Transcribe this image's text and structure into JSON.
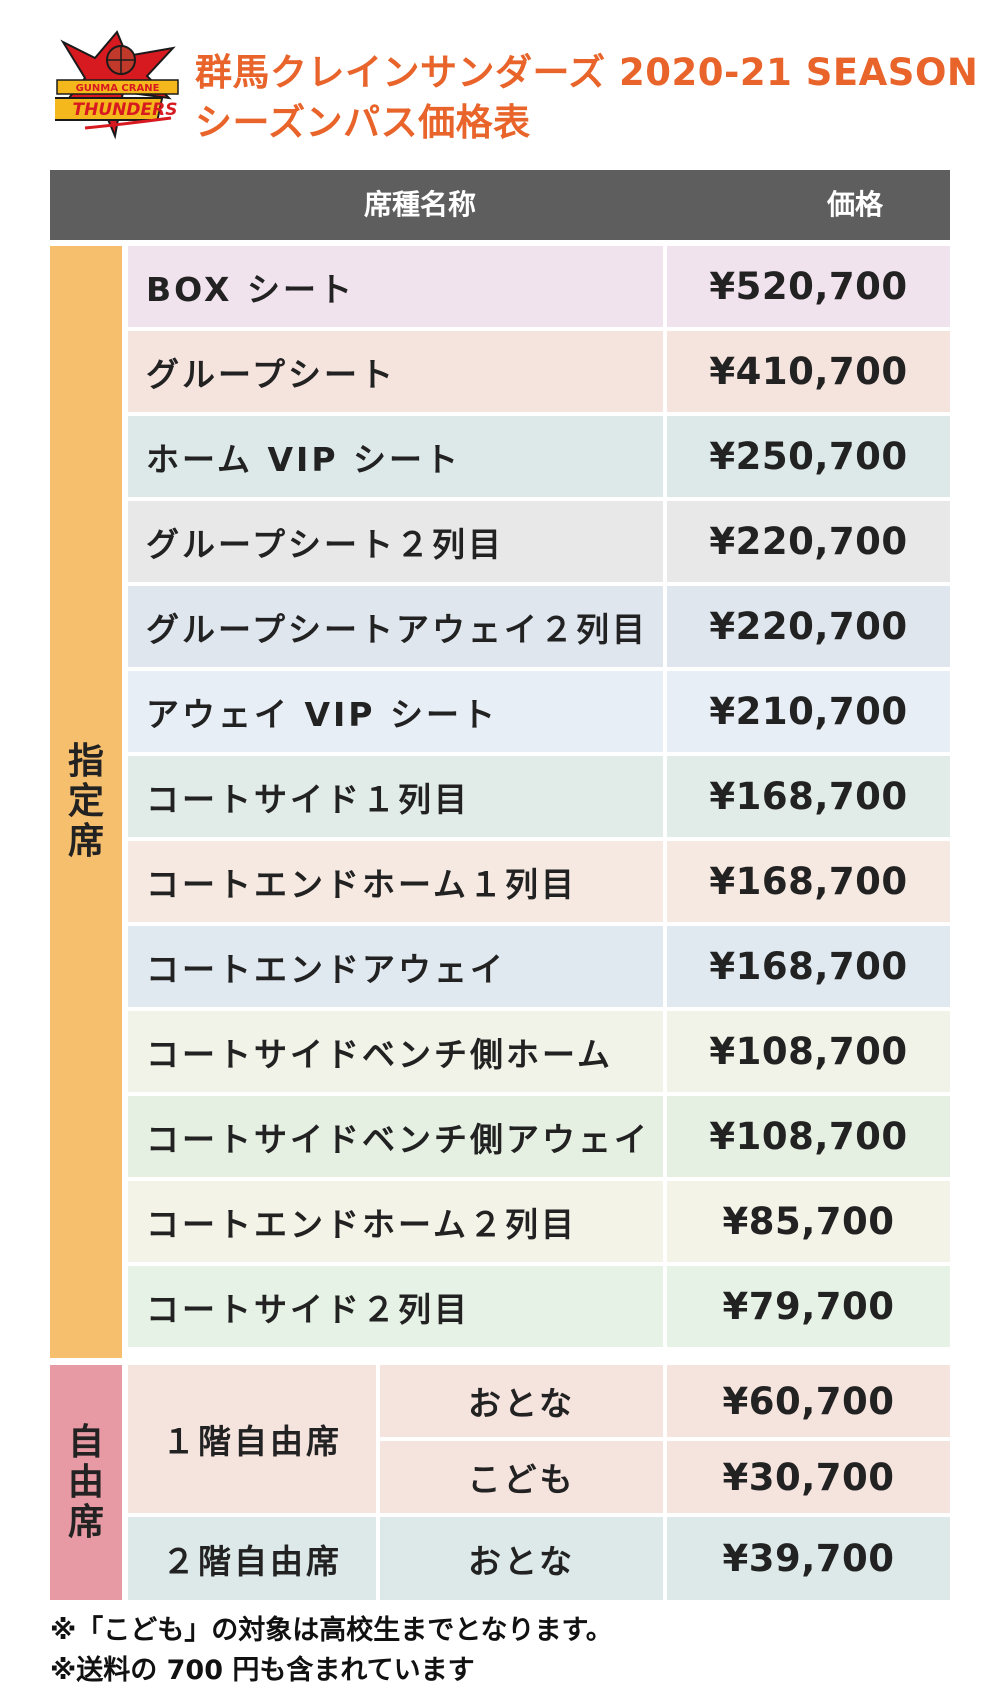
{
  "logo": {
    "text_top": "GUNMA CRANE",
    "text_main": "THUNDERS",
    "colors": {
      "red": "#d71920",
      "yellow": "#f5b81c",
      "black": "#1a1a1a"
    }
  },
  "title": {
    "line1": "群馬クレインサンダーズ 2020-21 SEASON",
    "line2": "シーズンパス価格表",
    "color": "#e8642a"
  },
  "table": {
    "header": {
      "name": "席種名称",
      "price": "価格",
      "bg": "#5e5e5e"
    },
    "reserved_label": "指定席",
    "reserved_rows": [
      {
        "name": "BOX シート",
        "price": "¥520,700",
        "bg": "#f1e3ee"
      },
      {
        "name": "グループシート",
        "price": "¥410,700",
        "bg": "#f5e3de"
      },
      {
        "name": "ホーム VIP シート",
        "price": "¥250,700",
        "bg": "#dde9e9"
      },
      {
        "name": "グループシート２列目",
        "price": "¥220,700",
        "bg": "#e8e8e8"
      },
      {
        "name": "グループシートアウェイ２列目",
        "price": "¥220,700",
        "bg": "#dfe6ee"
      },
      {
        "name": "アウェイ VIP シート",
        "price": "¥210,700",
        "bg": "#e8eef6"
      },
      {
        "name": "コートサイド１列目",
        "price": "¥168,700",
        "bg": "#e1ece8"
      },
      {
        "name": "コートエンドホーム１列目",
        "price": "¥168,700",
        "bg": "#f6e9e1"
      },
      {
        "name": "コートエンドアウェイ",
        "price": "¥168,700",
        "bg": "#e0e9f0"
      },
      {
        "name": "コートサイドベンチ側ホーム",
        "price": "¥108,700",
        "bg": "#f1f3e8"
      },
      {
        "name": "コートサイドベンチ側アウェイ",
        "price": "¥108,700",
        "bg": "#e5f0e3"
      },
      {
        "name": "コートエンドホーム２列目",
        "price": "¥85,700",
        "bg": "#f3f3e7"
      },
      {
        "name": "コートサイド２列目",
        "price": "¥79,700",
        "bg": "#e7f2e6"
      }
    ],
    "free_label": "自由席",
    "free_rows": [
      {
        "group": "１階自由席",
        "type": "おとな",
        "price": "¥60,700"
      },
      {
        "type": "こども",
        "price": "¥30,700"
      },
      {
        "group": "２階自由席",
        "type": "おとな",
        "price": "¥39,700"
      }
    ]
  },
  "notes": [
    "※「こども」の対象は高校生までとなります。",
    "※送料の 700 円も含まれています"
  ]
}
